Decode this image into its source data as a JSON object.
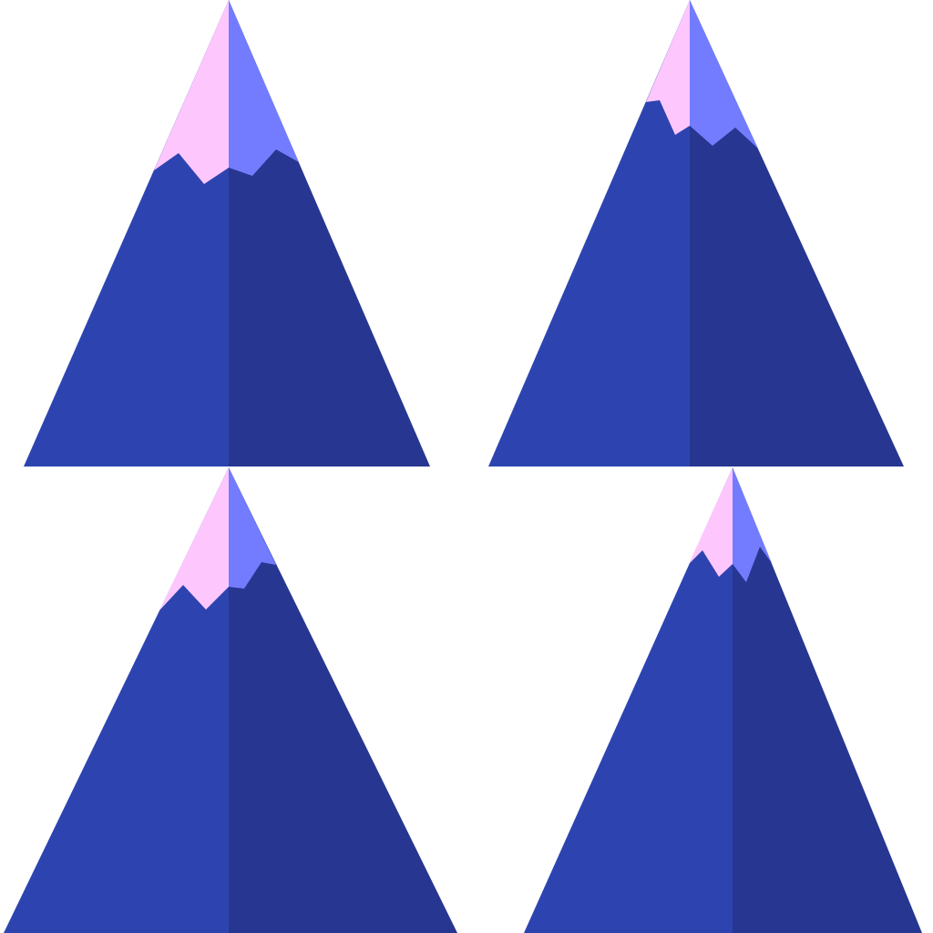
{
  "colors": {
    "background": "#ffffff",
    "mountain_left": "#2d44b0",
    "mountain_right": "#273690",
    "snow_left": "#fdc7fe",
    "snow_right": "#737cfe"
  },
  "icons": [
    {
      "name": "mountain-icon"
    },
    {
      "name": "mountain-icon"
    },
    {
      "name": "mountain-icon"
    },
    {
      "name": "mountain-icon"
    }
  ]
}
